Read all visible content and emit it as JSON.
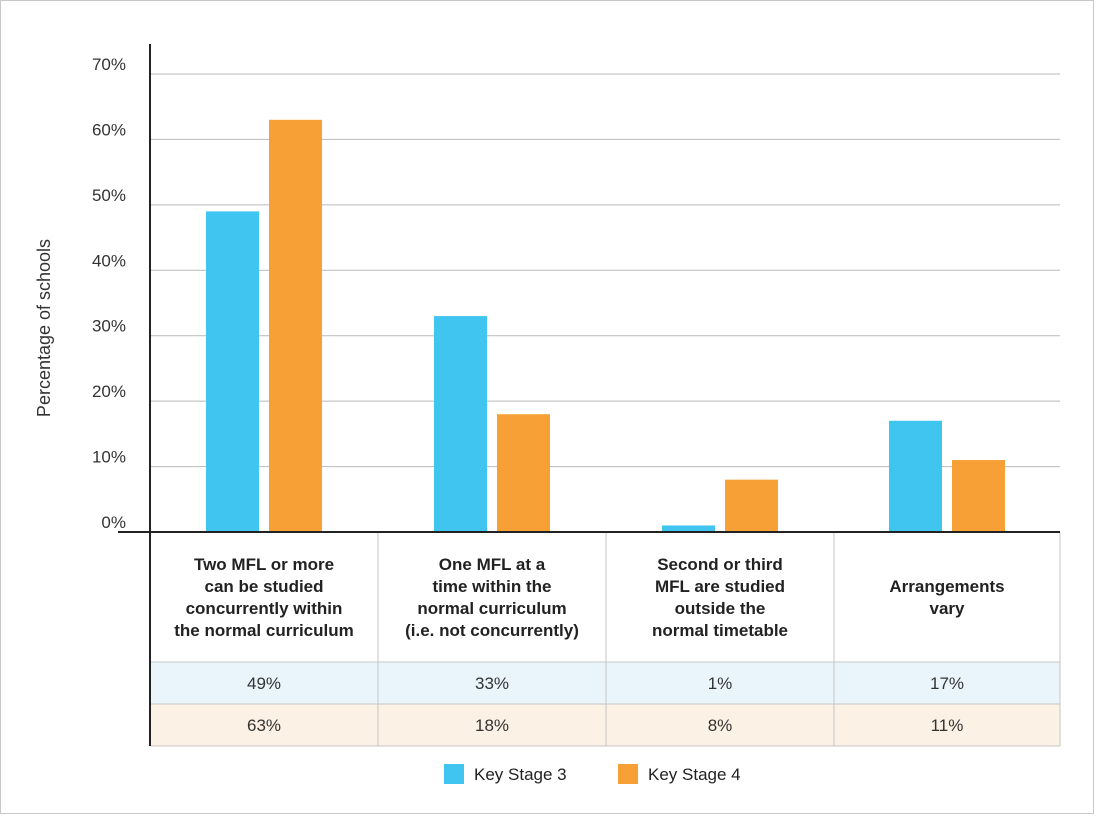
{
  "chart_data": {
    "type": "bar",
    "ylabel": "Percentage of schools",
    "xlabel": "",
    "ylim": [
      0,
      70
    ],
    "yticks": [
      "0%",
      "10%",
      "20%",
      "30%",
      "40%",
      "50%",
      "60%",
      "70%"
    ],
    "grid": true,
    "legend_position": "bottom",
    "categories": [
      [
        "Two MFL or more",
        "can be studied",
        "concurrently within",
        "the normal curriculum"
      ],
      [
        "One MFL at a",
        "time within the",
        "normal curriculum",
        "(i.e. not concurrently)"
      ],
      [
        "Second or third",
        "MFL are studied",
        "outside the",
        "normal timetable"
      ],
      [
        "Arrangements",
        "vary"
      ]
    ],
    "series": [
      {
        "name": "Key Stage 3",
        "color": "#40c4f0",
        "row_color": "#eaf5fb",
        "values": [
          49,
          33,
          1,
          17
        ],
        "labels": [
          "49%",
          "33%",
          "1%",
          "17%"
        ]
      },
      {
        "name": "Key Stage 4",
        "color": "#f7a035",
        "row_color": "#fbf1e4",
        "values": [
          63,
          18,
          8,
          11
        ],
        "labels": [
          "63%",
          "18%",
          "8%",
          "11%"
        ]
      }
    ]
  }
}
